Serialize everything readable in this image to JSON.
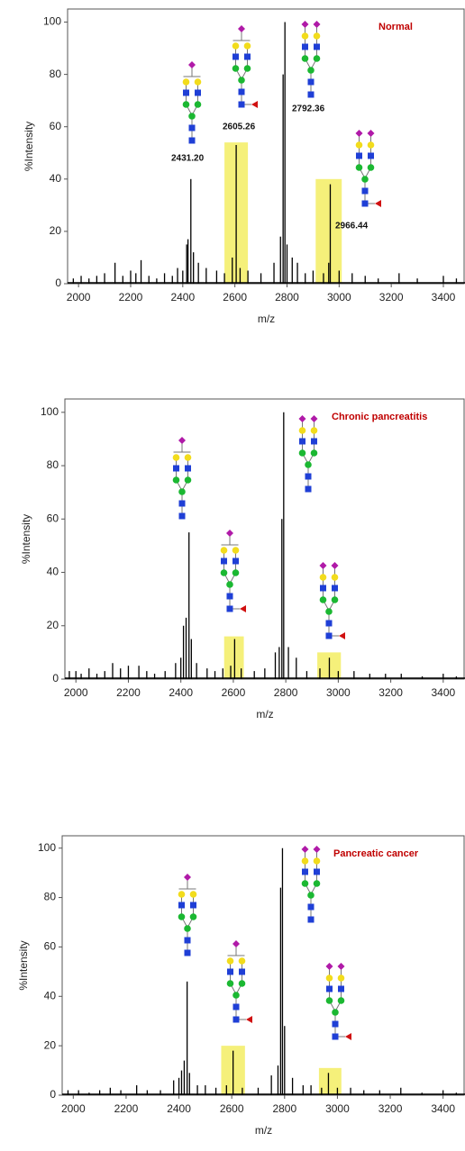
{
  "chart_data": [
    {
      "type": "spectrum",
      "title": "Normal",
      "title_color": "#c00000",
      "xlabel": "m/z",
      "ylabel": "%Intensity",
      "xlim": [
        1958,
        3483
      ],
      "ylim": [
        0,
        105
      ],
      "xticks": [
        2000,
        2200,
        2400,
        2600,
        2800,
        3000,
        3200,
        3400
      ],
      "yticks": [
        0,
        20,
        40,
        60,
        80,
        100
      ],
      "color": "#000000",
      "highlight_color": "#f5f07a",
      "annotations": [
        "2431.20",
        "2605.26",
        "2792.36",
        "2966.44"
      ],
      "highlights": [
        {
          "xrange": [
            2560,
            2650
          ],
          "value": 54
        },
        {
          "xrange": [
            2910,
            3010
          ],
          "value": 40
        }
      ],
      "x": [
        1980,
        2010,
        2040,
        2070,
        2100,
        2140,
        2170,
        2200,
        2220,
        2240,
        2270,
        2300,
        2330,
        2360,
        2380,
        2400,
        2415,
        2420,
        2431,
        2441,
        2460,
        2490,
        2530,
        2560,
        2590,
        2605,
        2620,
        2650,
        2700,
        2750,
        2775,
        2785,
        2792,
        2800,
        2820,
        2840,
        2870,
        2900,
        2940,
        2960,
        2966,
        3000,
        3050,
        3100,
        3150,
        3230,
        3300,
        3400,
        3450
      ],
      "values": [
        2,
        3,
        2,
        3,
        4,
        8,
        3,
        5,
        4,
        9,
        3,
        2,
        4,
        3,
        6,
        5,
        15,
        17,
        40,
        12,
        8,
        6,
        5,
        4,
        10,
        53,
        6,
        5,
        4,
        8,
        18,
        80,
        100,
        15,
        10,
        8,
        4,
        5,
        4,
        8,
        38,
        5,
        4,
        3,
        2,
        4,
        2,
        3,
        2
      ]
    },
    {
      "type": "spectrum",
      "title": "Chronic pancreatitis",
      "title_color": "#c00000",
      "xlabel": "m/z",
      "ylabel": "%Intensity",
      "xlim": [
        1958,
        3483
      ],
      "ylim": [
        0,
        105
      ],
      "xticks": [
        2000,
        2200,
        2400,
        2600,
        2800,
        3000,
        3200,
        3400
      ],
      "yticks": [
        0,
        20,
        40,
        60,
        80,
        100
      ],
      "color": "#000000",
      "highlight_color": "#f5f07a",
      "highlights": [
        {
          "xrange": [
            2565,
            2640
          ],
          "value": 16
        },
        {
          "xrange": [
            2920,
            3010
          ],
          "value": 10
        }
      ],
      "x": [
        1975,
        2000,
        2020,
        2050,
        2080,
        2110,
        2140,
        2170,
        2200,
        2240,
        2270,
        2300,
        2340,
        2380,
        2400,
        2410,
        2420,
        2431,
        2440,
        2460,
        2500,
        2530,
        2560,
        2590,
        2605,
        2630,
        2680,
        2720,
        2760,
        2775,
        2785,
        2792,
        2810,
        2840,
        2880,
        2930,
        2966,
        3000,
        3060,
        3120,
        3180,
        3240,
        3320,
        3400,
        3450
      ],
      "values": [
        3,
        3,
        2,
        4,
        2,
        3,
        6,
        4,
        5,
        5,
        3,
        2,
        3,
        6,
        8,
        20,
        23,
        55,
        15,
        6,
        4,
        3,
        4,
        5,
        15,
        4,
        3,
        4,
        10,
        12,
        60,
        100,
        12,
        8,
        3,
        4,
        8,
        3,
        3,
        2,
        2,
        2,
        1,
        2,
        1
      ]
    },
    {
      "type": "spectrum",
      "title": "Pancreatic cancer",
      "title_color": "#c00000",
      "xlabel": "m/z",
      "ylabel": "%Intensity",
      "xlim": [
        1958,
        3483
      ],
      "ylim": [
        0,
        105
      ],
      "xticks": [
        2000,
        2200,
        2400,
        2600,
        2800,
        3000,
        3200,
        3400
      ],
      "yticks": [
        0,
        20,
        40,
        60,
        80,
        100
      ],
      "color": "#000000",
      "highlight_color": "#f5f07a",
      "highlights": [
        {
          "xrange": [
            2560,
            2650
          ],
          "value": 20
        },
        {
          "xrange": [
            2930,
            3015
          ],
          "value": 11
        }
      ],
      "x": [
        1980,
        2020,
        2060,
        2100,
        2140,
        2180,
        2240,
        2280,
        2330,
        2380,
        2400,
        2410,
        2420,
        2431,
        2440,
        2470,
        2500,
        2540,
        2580,
        2605,
        2640,
        2700,
        2750,
        2775,
        2785,
        2792,
        2800,
        2830,
        2870,
        2900,
        2940,
        2966,
        3000,
        3050,
        3100,
        3160,
        3240,
        3320,
        3400,
        3450
      ],
      "values": [
        2,
        2,
        1,
        2,
        3,
        2,
        4,
        2,
        2,
        6,
        7,
        10,
        14,
        46,
        9,
        4,
        4,
        3,
        4,
        18,
        3,
        3,
        8,
        12,
        84,
        100,
        28,
        7,
        4,
        4,
        3,
        9,
        3,
        3,
        2,
        2,
        3,
        1,
        2,
        1
      ]
    }
  ]
}
